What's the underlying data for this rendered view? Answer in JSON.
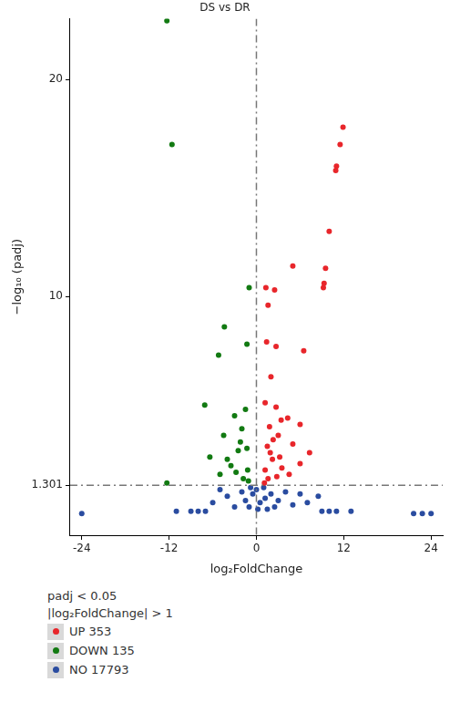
{
  "chart_data": {
    "type": "scatter",
    "title": "DS vs DR",
    "x_label": "log₂FoldChange",
    "y_label": "−log₁₀ (padj)",
    "xlim": [
      -25.6,
      25.6
    ],
    "xticks": [
      -24,
      -12,
      0,
      12,
      24
    ],
    "ylim": [
      -1,
      22.8
    ],
    "yticks": [
      1.301,
      10,
      20
    ],
    "grid": false,
    "legend": "bottom left",
    "legend_title": [
      "padj < 0.05",
      "|log₂FoldChange| > 1"
    ],
    "annotations": [
      {
        "axis": "x",
        "value": 0,
        "line_style": "dashdot"
      },
      {
        "axis": "y",
        "value": 1.301,
        "line_style": "dashdot"
      }
    ],
    "series": [
      {
        "name": "UP 353",
        "color": "#e8262b",
        "x": [
          11.9,
          11.5,
          11.0,
          10.9,
          10.0,
          9.5,
          5.0,
          9.3,
          9.2,
          1.3,
          2.5,
          1.6,
          1.4,
          2.7,
          6.5,
          2.0,
          1.2,
          2.7,
          4.3,
          3.4,
          6.0,
          1.8,
          3.0,
          2.3,
          5.0,
          7.3,
          1.5,
          2.2,
          1.2,
          3.5,
          2.8,
          1.6,
          4.5,
          1.1,
          6.0,
          1.9,
          3.2
        ],
        "y": [
          17.8,
          17.0,
          16.0,
          15.8,
          13.0,
          11.3,
          11.4,
          10.6,
          10.4,
          10.4,
          10.3,
          9.6,
          7.9,
          7.7,
          7.5,
          6.3,
          5.1,
          4.9,
          4.4,
          4.3,
          4.1,
          4.0,
          3.6,
          3.4,
          3.2,
          2.8,
          3.1,
          2.5,
          2.0,
          2.1,
          1.7,
          1.6,
          1.8,
          1.4,
          2.3,
          2.8,
          2.6
        ]
      },
      {
        "name": "DOWN 135",
        "color": "#127a12",
        "x": [
          -12.3,
          -11.6,
          -1.0,
          -4.4,
          -5.2,
          -1.3,
          -7.1,
          -6.4,
          -12.3,
          -3.0,
          -2.0,
          -1.5,
          -2.5,
          -4.0,
          -1.2,
          -3.5,
          -1.8,
          -5.0,
          -2.2,
          -1.3,
          -4.5,
          -2.8,
          -1.1
        ],
        "y": [
          22.7,
          17.0,
          10.4,
          8.6,
          7.3,
          7.8,
          5.0,
          2.6,
          1.4,
          4.5,
          3.9,
          4.8,
          2.9,
          2.5,
          2.0,
          2.2,
          1.6,
          1.8,
          3.3,
          3.0,
          3.6,
          1.9,
          1.5
        ]
      },
      {
        "name": "NO 17793",
        "color": "#2a4ca0",
        "x": [
          -24,
          21.6,
          22.8,
          24,
          -8,
          -6,
          -4,
          -2,
          0,
          1,
          2,
          3,
          5,
          7,
          8.5,
          10,
          -1,
          0.5,
          -0.5,
          1.5,
          -3,
          4,
          6,
          -5,
          -0.8,
          0.2,
          2.5,
          -1.5,
          1.2,
          9,
          -7,
          -9,
          11,
          13,
          -11
        ],
        "y": [
          0,
          0,
          0,
          0,
          0.1,
          0.5,
          0.8,
          1.0,
          1.1,
          1.2,
          0.9,
          0.6,
          0.4,
          0.5,
          0.8,
          0.1,
          0.3,
          0.5,
          0.9,
          0.2,
          0.3,
          1.0,
          0.9,
          1.1,
          1.2,
          0.2,
          0.3,
          0.6,
          0.7,
          0.1,
          0.1,
          0.1,
          0.1,
          0.1,
          0.1
        ]
      }
    ]
  }
}
